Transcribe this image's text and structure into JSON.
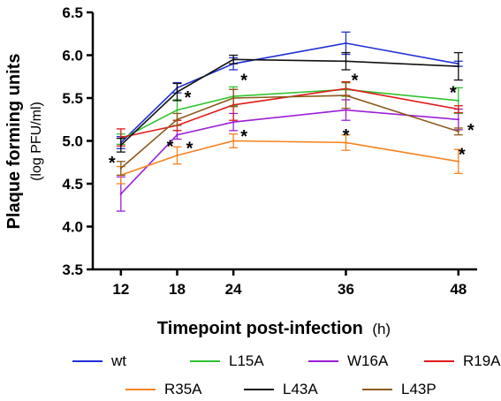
{
  "chart_data": {
    "type": "line",
    "xlabel": "Timepoint post-infection",
    "xlabel_unit": "(h)",
    "ylabel": "Plaque forming units",
    "ylabel_unit": "(log PFU/ml)",
    "x": [
      12,
      18,
      24,
      36,
      48
    ],
    "xticks": [
      "12",
      "18",
      "24",
      "36",
      "48"
    ],
    "yticks": [
      "3.5",
      "4.0",
      "4.5",
      "5.0",
      "5.5",
      "6.0",
      "6.5"
    ],
    "ylim": [
      3.5,
      6.5
    ],
    "xlim": [
      9,
      50
    ],
    "grid": false,
    "legend_position": "bottom",
    "series": [
      {
        "name": "wt",
        "color": "#1f2fd6",
        "values": [
          4.98,
          5.62,
          5.9,
          6.14,
          5.9
        ],
        "errors": [
          0.07,
          0.06,
          0.07,
          0.13,
          0.03
        ]
      },
      {
        "name": "L15A",
        "color": "#2fc22f",
        "values": [
          5.02,
          5.36,
          5.52,
          5.6,
          5.47
        ],
        "errors": [
          0.06,
          0.12,
          0.11,
          0.08,
          0.15
        ]
      },
      {
        "name": "W16A",
        "color": "#9b1fd6",
        "values": [
          4.38,
          5.07,
          5.22,
          5.36,
          5.25
        ],
        "errors": [
          0.2,
          0.05,
          0.1,
          0.12,
          0.12
        ]
      },
      {
        "name": "R19A",
        "color": "#e01a1a",
        "values": [
          5.04,
          5.18,
          5.42,
          5.61,
          5.37
        ],
        "errors": [
          0.1,
          0.06,
          0.18,
          0.08,
          0.04
        ]
      },
      {
        "name": "R35A",
        "color": "#f5821f",
        "values": [
          4.6,
          4.83,
          5.0,
          4.98,
          4.76
        ],
        "errors": [
          0.1,
          0.1,
          0.08,
          0.09,
          0.14
        ]
      },
      {
        "name": "L43A",
        "color": "#111111",
        "values": [
          4.95,
          5.57,
          5.95,
          5.93,
          5.87
        ],
        "errors": [
          0.08,
          0.1,
          0.05,
          0.1,
          0.16
        ]
      },
      {
        "name": "L43P",
        "color": "#8c5a1c",
        "values": [
          4.68,
          5.25,
          5.5,
          5.53,
          5.11
        ],
        "errors": [
          0.08,
          0.07,
          0.1,
          0.15,
          0.04
        ]
      }
    ],
    "annotations": [
      {
        "text": "*",
        "x": 12,
        "y": 4.8
      },
      {
        "text": "*",
        "x": 18,
        "y": 5.52
      },
      {
        "text": "*",
        "x": 18,
        "y": 5.03
      },
      {
        "text": "*",
        "x": 18,
        "y": 5.03
      },
      {
        "text": "*",
        "x": 24,
        "y": 5.72
      },
      {
        "text": "*",
        "x": 24,
        "y": 5.13
      },
      {
        "text": "*",
        "x": 36,
        "y": 5.72
      },
      {
        "text": "*",
        "x": 36,
        "y": 5.12
      },
      {
        "text": "*",
        "x": 48,
        "y": 5.62
      },
      {
        "text": "*",
        "x": 48,
        "y": 5.22
      },
      {
        "text": "*",
        "x": 48,
        "y": 4.96
      }
    ]
  },
  "legend": {
    "items": [
      {
        "label": "wt",
        "color": "#1f2fd6"
      },
      {
        "label": "L15A",
        "color": "#2fc22f"
      },
      {
        "label": "W16A",
        "color": "#9b1fd6"
      },
      {
        "label": "R19A",
        "color": "#e01a1a"
      },
      {
        "label": "R35A",
        "color": "#f5821f"
      },
      {
        "label": "L43A",
        "color": "#111111"
      },
      {
        "label": "L43P",
        "color": "#8c5a1c"
      }
    ]
  }
}
